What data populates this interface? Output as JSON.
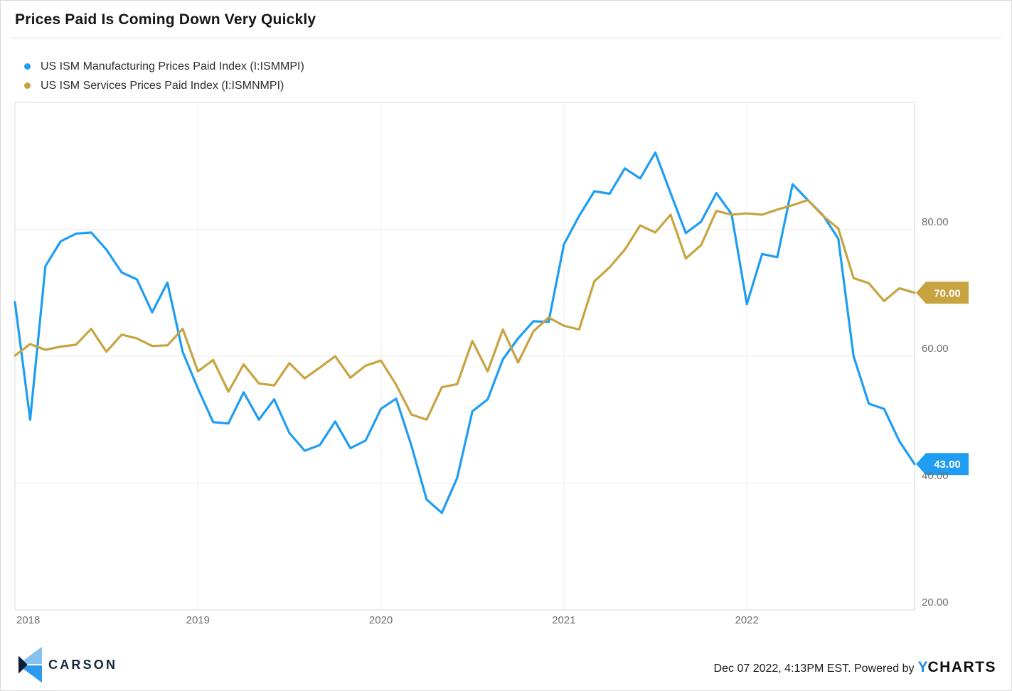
{
  "header": {
    "title": "Prices Paid Is Coming Down Very Quickly"
  },
  "legend": {
    "position": "top-left",
    "items": [
      {
        "label": "US ISM Manufacturing Prices Paid Index (I:ISMMPI)",
        "color": "#1e9df2"
      },
      {
        "label": "US ISM Services Prices Paid Index (I:ISMNMPI)",
        "color": "#c7a440"
      }
    ]
  },
  "chart_data": {
    "type": "line",
    "title": "Prices Paid Is Coming Down Very Quickly",
    "grid": true,
    "legend_position": "top-left",
    "x_monthly": [
      "Dec 2017",
      "Jan 2018",
      "Feb 2018",
      "Mar 2018",
      "Apr 2018",
      "May 2018",
      "Jun 2018",
      "Jul 2018",
      "Aug 2018",
      "Sep 2018",
      "Oct 2018",
      "Nov 2018",
      "Dec 2018",
      "Jan 2019",
      "Feb 2019",
      "Mar 2019",
      "Apr 2019",
      "May 2019",
      "Jun 2019",
      "Jul 2019",
      "Aug 2019",
      "Sep 2019",
      "Oct 2019",
      "Nov 2019",
      "Dec 2019",
      "Jan 2020",
      "Feb 2020",
      "Mar 2020",
      "Apr 2020",
      "May 2020",
      "Jun 2020",
      "Jul 2020",
      "Aug 2020",
      "Sep 2020",
      "Oct 2020",
      "Nov 2020",
      "Dec 2020",
      "Jan 2021",
      "Feb 2021",
      "Mar 2021",
      "Apr 2021",
      "May 2021",
      "Jun 2021",
      "Jul 2021",
      "Aug 2021",
      "Sep 2021",
      "Oct 2021",
      "Nov 2021",
      "Dec 2021",
      "Jan 2022",
      "Feb 2022",
      "Mar 2022",
      "Apr 2022",
      "May 2022",
      "Jun 2022",
      "Jul 2022",
      "Aug 2022",
      "Sep 2022",
      "Oct 2022",
      "Nov 2022"
    ],
    "series": [
      {
        "key": "manufacturing",
        "name": "US ISM Manufacturing Prices Paid Index (I:ISMMPI)",
        "ticker": "I:ISMMPI",
        "color": "#1e9df2",
        "values": [
          68.5,
          50.0,
          74.2,
          78.1,
          79.3,
          79.5,
          76.8,
          73.2,
          72.1,
          66.9,
          71.6,
          60.7,
          54.9,
          49.6,
          49.4,
          54.3,
          50.0,
          53.2,
          47.9,
          45.1,
          46.0,
          49.7,
          45.5,
          46.7,
          51.7,
          53.3,
          45.9,
          37.4,
          35.3,
          40.8,
          51.3,
          53.2,
          59.5,
          62.8,
          65.5,
          65.4,
          77.6,
          82.1,
          86.0,
          85.6,
          89.6,
          88.0,
          92.1,
          85.7,
          79.4,
          81.2,
          85.7,
          82.4,
          68.2,
          76.1,
          75.6,
          87.1,
          84.6,
          82.2,
          78.5,
          60.0,
          52.5,
          51.7,
          46.6,
          43.0
        ]
      },
      {
        "key": "services",
        "name": "US ISM Services Prices Paid Index (I:ISMNMPI)",
        "ticker": "I:ISMNMPI",
        "color": "#c7a440",
        "values": [
          60.1,
          61.9,
          61.0,
          61.5,
          61.8,
          64.3,
          60.7,
          63.4,
          62.8,
          61.6,
          61.7,
          64.3,
          57.6,
          59.4,
          54.4,
          58.7,
          55.7,
          55.4,
          58.9,
          56.5,
          58.2,
          60.0,
          56.6,
          58.5,
          59.3,
          55.5,
          50.8,
          50.0,
          55.1,
          55.6,
          62.4,
          57.6,
          64.2,
          59.0,
          63.9,
          66.1,
          64.8,
          64.2,
          71.8,
          74.0,
          76.8,
          80.6,
          79.5,
          82.3,
          75.4,
          77.5,
          82.9,
          82.3,
          82.5,
          82.3,
          83.1,
          83.8,
          84.6,
          82.1,
          80.1,
          72.3,
          71.5,
          68.7,
          70.7,
          70.0
        ]
      }
    ],
    "x_axis": {
      "tick_labels": [
        "2018",
        "2019",
        "2020",
        "2021",
        "2022"
      ],
      "tick_month_index": [
        0,
        12,
        24,
        36,
        48
      ]
    },
    "y_axis": {
      "tick_labels": [
        "80.00",
        "60.00",
        "40.00",
        "20.00"
      ],
      "tick_values": [
        80,
        60,
        40,
        20
      ],
      "range": [
        20,
        100
      ]
    },
    "end_labels": [
      {
        "key": "services",
        "text": "70.00",
        "value": 70.0,
        "color": "#c7a440"
      },
      {
        "key": "manufacturing",
        "text": "43.00",
        "value": 43.0,
        "color": "#1e9df2"
      }
    ],
    "colors": {
      "gridline": "#ececec",
      "plot_border": "#d9d9d9",
      "axis_text": "#6e6e6e"
    }
  },
  "footer": {
    "carson_label": "CARSON",
    "timestamp": "Dec 07 2022, 4:13PM EST. Powered by",
    "ycharts_y": "Y",
    "ycharts_rest": "CHARTS",
    "colors": {
      "carson_navy": "#16263f",
      "carson_light_blue": "#85c2ef",
      "carson_mid_blue": "#2d9aee",
      "ycharts_blue": "#1d8cf0"
    }
  }
}
